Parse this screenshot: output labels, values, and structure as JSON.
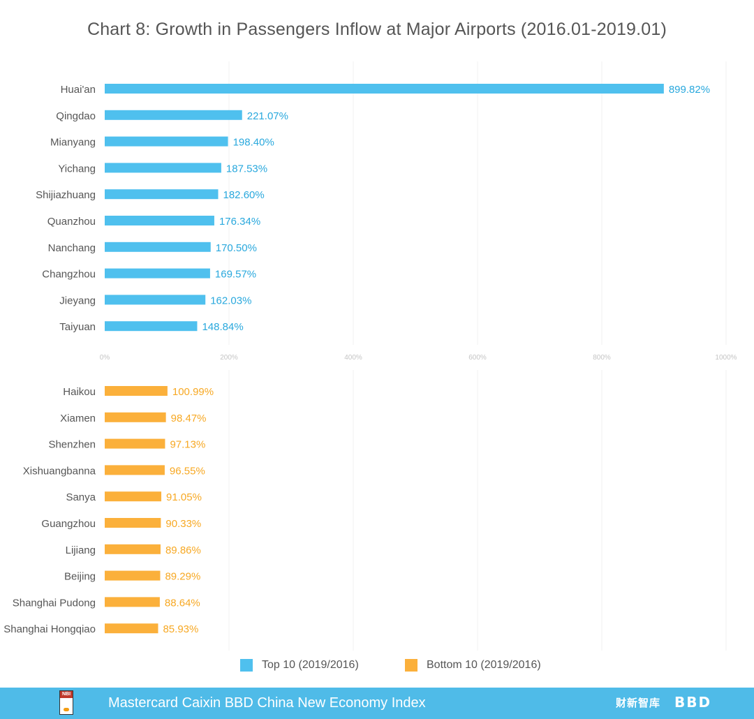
{
  "chart_data": {
    "type": "bar",
    "orientation": "horizontal",
    "title": "Chart 8: Growth in Passengers Inflow at Major Airports (2016.01-2019.01)",
    "xlim": [
      0,
      1000
    ],
    "x_ticks": [
      "0%",
      "200%",
      "400%",
      "600%",
      "800%",
      "1000%"
    ],
    "x_tick_values": [
      0,
      200,
      400,
      600,
      800,
      1000
    ],
    "grid": true,
    "legend_position": "bottom",
    "series": [
      {
        "name": "Top 10 (2019/2016)",
        "color": "#4fc0ee",
        "label_color": "#29a8dd",
        "categories": [
          "Huai'an",
          "Qingdao",
          "Mianyang",
          "Yichang",
          "Shijiazhuang",
          "Quanzhou",
          "Nanchang",
          "Changzhou",
          "Jieyang",
          "Taiyuan"
        ],
        "values": [
          899.82,
          221.07,
          198.4,
          187.53,
          182.6,
          176.34,
          170.5,
          169.57,
          162.03,
          148.84
        ],
        "labels": [
          "899.82%",
          "221.07%",
          "198.40%",
          "187.53%",
          "182.60%",
          "176.34%",
          "170.50%",
          "169.57%",
          "162.03%",
          "148.84%"
        ]
      },
      {
        "name": "Bottom 10 (2019/2016)",
        "color": "#fbb03b",
        "label_color": "#f7a823",
        "categories": [
          "Haikou",
          "Xiamen",
          "Shenzhen",
          "Xishuangbanna",
          "Sanya",
          "Guangzhou",
          "Lijiang",
          "Beijing",
          "Shanghai Pudong",
          "Shanghai Hongqiao"
        ],
        "values": [
          100.99,
          98.47,
          97.13,
          96.55,
          91.05,
          90.33,
          89.86,
          89.29,
          88.64,
          85.93
        ],
        "labels": [
          "100.99%",
          "98.47%",
          "97.13%",
          "96.55%",
          "91.05%",
          "90.33%",
          "89.86%",
          "89.29%",
          "88.64%",
          "85.93%"
        ]
      }
    ]
  },
  "footer": {
    "text": "Mastercard Caixin BBD China New Economy Index",
    "logo_left_text": "NBI",
    "logo_caixin_text": "财新智库",
    "logo_bbd_text": "BBD"
  }
}
